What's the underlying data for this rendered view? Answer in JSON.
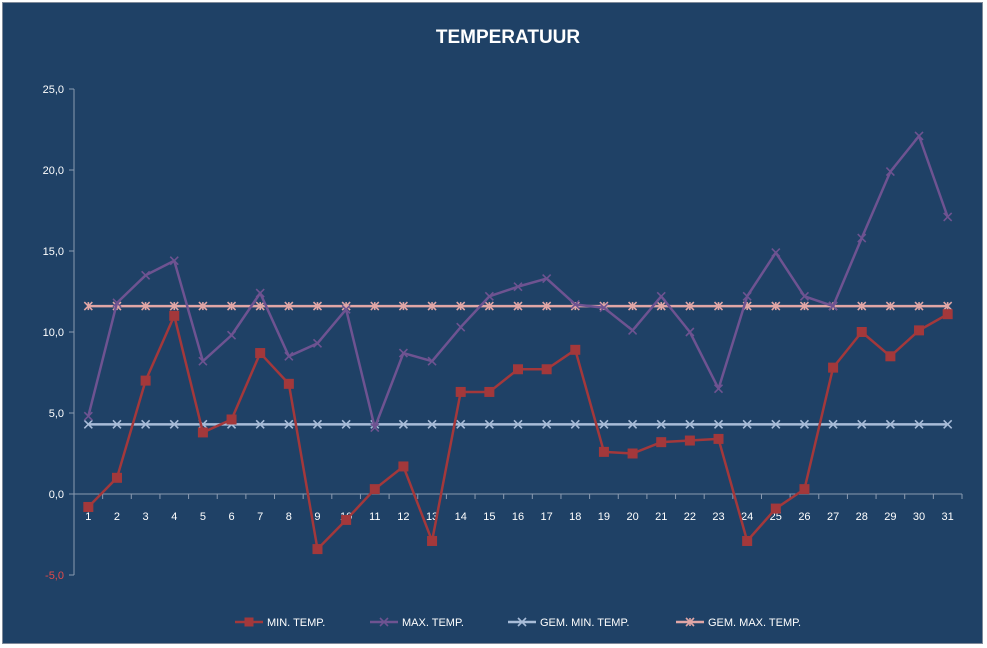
{
  "chart_data": {
    "type": "line",
    "title": "TEMPERATUUR",
    "x": [
      1,
      2,
      3,
      4,
      5,
      6,
      7,
      8,
      9,
      10,
      11,
      12,
      13,
      14,
      15,
      16,
      17,
      18,
      19,
      20,
      21,
      22,
      23,
      24,
      25,
      26,
      27,
      28,
      29,
      30,
      31
    ],
    "ylim": [
      -5,
      25
    ],
    "yticks": [
      "-5,0",
      "0,0",
      "5,0",
      "10,0",
      "15,0",
      "20,0",
      "25,0"
    ],
    "ytick_values": [
      -5,
      0,
      5,
      10,
      15,
      20,
      25
    ],
    "grid": false,
    "legend_position": "bottom",
    "series": [
      {
        "name": "MIN. TEMP.",
        "color": "#a3383b",
        "marker": "square",
        "values": [
          -0.8,
          1.0,
          7.0,
          11.0,
          3.8,
          4.6,
          8.7,
          6.8,
          -3.4,
          -1.6,
          0.3,
          1.7,
          -2.9,
          6.3,
          6.3,
          7.7,
          7.7,
          8.9,
          2.6,
          2.5,
          3.2,
          3.3,
          3.4,
          -2.9,
          -0.9,
          0.3,
          7.8,
          10.0,
          8.5,
          10.1,
          11.1
        ]
      },
      {
        "name": "MAX. TEMP.",
        "color": "#6e5391",
        "marker": "x",
        "values": [
          4.8,
          11.8,
          13.5,
          14.4,
          8.2,
          9.8,
          12.4,
          8.5,
          9.3,
          11.4,
          4.1,
          8.7,
          8.2,
          10.3,
          12.2,
          12.8,
          13.3,
          11.7,
          11.5,
          10.1,
          12.2,
          10.0,
          6.5,
          12.2,
          14.9,
          12.2,
          11.6,
          15.8,
          19.9,
          22.1,
          17.1
        ]
      },
      {
        "name": "GEM. MIN. TEMP.",
        "color": "#a8bcd8",
        "marker": "x",
        "values": [
          4.3,
          4.3,
          4.3,
          4.3,
          4.3,
          4.3,
          4.3,
          4.3,
          4.3,
          4.3,
          4.3,
          4.3,
          4.3,
          4.3,
          4.3,
          4.3,
          4.3,
          4.3,
          4.3,
          4.3,
          4.3,
          4.3,
          4.3,
          4.3,
          4.3,
          4.3,
          4.3,
          4.3,
          4.3,
          4.3,
          4.3
        ]
      },
      {
        "name": "GEM. MAX. TEMP.",
        "color": "#e0a6a6",
        "marker": "star",
        "values": [
          11.6,
          11.6,
          11.6,
          11.6,
          11.6,
          11.6,
          11.6,
          11.6,
          11.6,
          11.6,
          11.6,
          11.6,
          11.6,
          11.6,
          11.6,
          11.6,
          11.6,
          11.6,
          11.6,
          11.6,
          11.6,
          11.6,
          11.6,
          11.6,
          11.6,
          11.6,
          11.6,
          11.6,
          11.6,
          11.6,
          11.6
        ]
      }
    ]
  }
}
